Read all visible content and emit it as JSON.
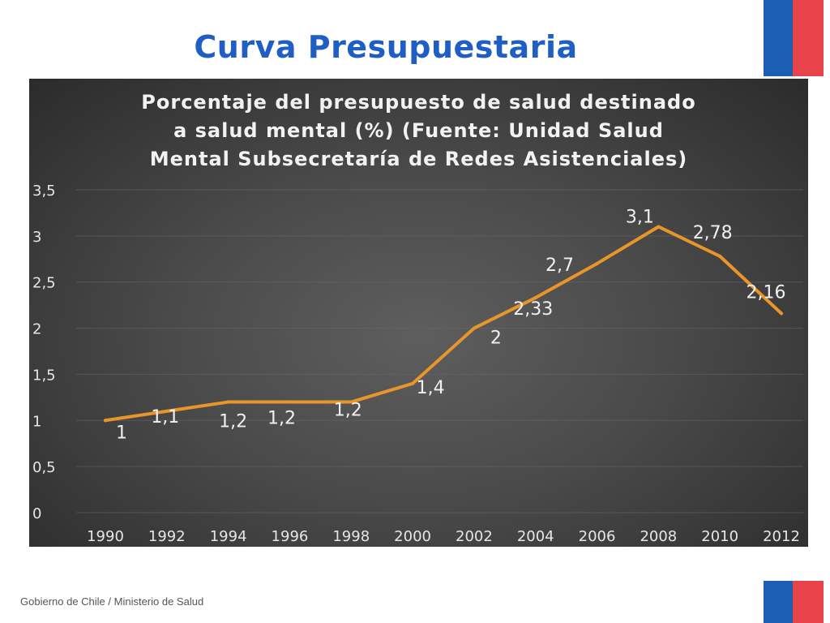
{
  "slide": {
    "title": "Curva Presupuestaria",
    "footer": "Gobierno de Chile / Ministerio de Salud"
  },
  "colors": {
    "title": "#1f5fc4",
    "line": "#e8962a",
    "flag_blue": "#1a5fb4",
    "flag_red": "#e8434a"
  },
  "chart_data": {
    "type": "line",
    "title_lines": [
      "Porcentaje del presupuesto de salud destinado",
      "a salud mental (%) (Fuente: Unidad Salud",
      "Mental Subsecretaría de Redes Asistenciales)"
    ],
    "categories": [
      "1990",
      "1992",
      "1994",
      "1996",
      "1998",
      "2000",
      "2002",
      "2004",
      "2006",
      "2008",
      "2010",
      "2012"
    ],
    "values": [
      1,
      1.1,
      1.2,
      1.2,
      1.2,
      1.4,
      2,
      2.33,
      2.7,
      3.1,
      2.78,
      2.16
    ],
    "data_labels": [
      "1",
      "1,1",
      "1,2",
      "1,2",
      "1,2",
      "1,4",
      "2",
      "2,33",
      "2,7",
      "3,1",
      "2,78",
      "2,16"
    ],
    "y_ticks": [
      0,
      0.5,
      1,
      1.5,
      2,
      2.5,
      3,
      3.5
    ],
    "y_tick_labels": [
      "0",
      "0,5",
      "1",
      "1,5",
      "2",
      "2,5",
      "3",
      "3,5"
    ],
    "ylim": [
      0,
      3.5
    ],
    "grid": true,
    "legend": "none"
  }
}
